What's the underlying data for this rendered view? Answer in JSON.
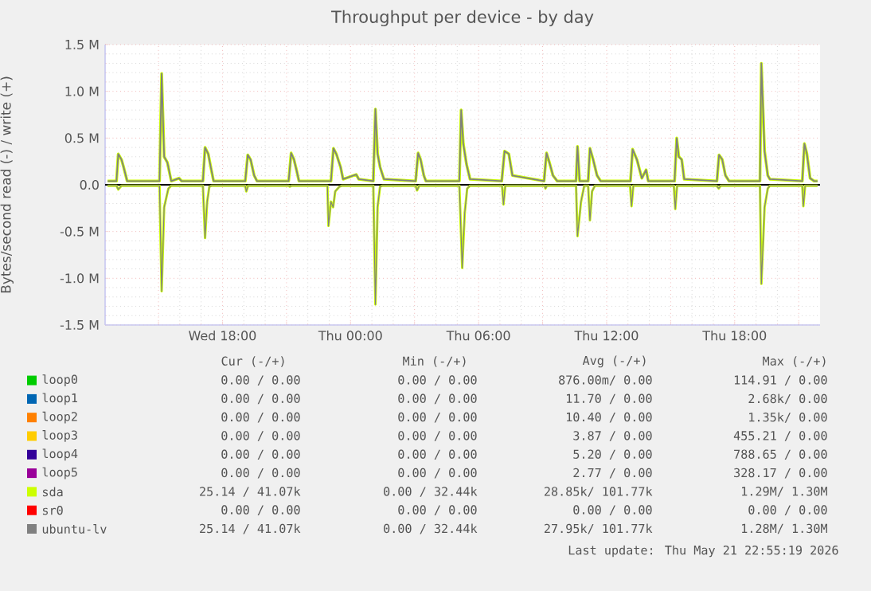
{
  "chart_data": {
    "type": "line",
    "title": "Throughput per device - by day",
    "ylabel": "Bytes/second read (-) / write (+)",
    "xlim": [
      "2026-05-20T12:30",
      "2026-05-21T22:00"
    ],
    "ylim": [
      -1.5,
      1.5
    ],
    "xticks": [
      {
        "value": "2026-05-20T15:00",
        "label": null
      },
      {
        "value": "2026-05-20T18:00",
        "label": "Wed 18:00"
      },
      {
        "value": "2026-05-20T21:00",
        "label": null
      },
      {
        "value": "2026-05-21T00:00",
        "label": "Thu 00:00"
      },
      {
        "value": "2026-05-21T03:00",
        "label": null
      },
      {
        "value": "2026-05-21T06:00",
        "label": "Thu 06:00"
      },
      {
        "value": "2026-05-21T09:00",
        "label": null
      },
      {
        "value": "2026-05-21T12:00",
        "label": "Thu 12:00"
      },
      {
        "value": "2026-05-21T15:00",
        "label": null
      },
      {
        "value": "2026-05-21T18:00",
        "label": "Thu 18:00"
      },
      {
        "value": "2026-05-21T21:00",
        "label": null
      }
    ],
    "yticks": [
      {
        "value": -1.5,
        "label": "-1.5 M"
      },
      {
        "value": -1.0,
        "label": "-1.0 M"
      },
      {
        "value": -0.5,
        "label": "-0.5 M"
      },
      {
        "value": 0,
        "label": "0.0"
      },
      {
        "value": 0.5,
        "label": "0.5 M"
      },
      {
        "value": 1.0,
        "label": "1.0 M"
      },
      {
        "value": 1.5,
        "label": "1.5 M"
      }
    ],
    "grid": true,
    "legend": "bottom",
    "marker": "none",
    "line_style": "solid",
    "ref_lines": [
      {
        "axis": "y",
        "value": 0,
        "color": "#000000"
      }
    ],
    "series": [
      {
        "name": "loop0",
        "color": "#00cc00"
      },
      {
        "name": "loop1",
        "color": "#0066b3"
      },
      {
        "name": "loop2",
        "color": "#ff8000"
      },
      {
        "name": "loop3",
        "color": "#ffcc00"
      },
      {
        "name": "loop4",
        "color": "#330099"
      },
      {
        "name": "loop5",
        "color": "#990099"
      },
      {
        "name": "sda",
        "color": "#ccff00",
        "x": [
          "2026-05-20T12:37",
          "2026-05-20T13:02",
          "2026-05-20T13:07",
          "2026-05-20T13:16",
          "2026-05-20T13:22",
          "2026-05-20T13:32",
          "2026-05-20T15:03",
          "2026-05-20T15:09",
          "2026-05-20T15:16",
          "2026-05-20T15:25",
          "2026-05-20T15:36",
          "2026-05-20T15:58",
          "2026-05-20T16:05",
          "2026-05-20T17:05",
          "2026-05-20T17:11",
          "2026-05-20T17:20",
          "2026-05-20T17:27",
          "2026-05-20T17:35",
          "2026-05-20T19:04",
          "2026-05-20T19:11",
          "2026-05-20T19:19",
          "2026-05-20T19:29",
          "2026-05-20T19:37",
          "2026-05-20T21:06",
          "2026-05-20T21:13",
          "2026-05-20T21:21",
          "2026-05-20T21:28",
          "2026-05-20T21:35",
          "2026-05-20T23:05",
          "2026-05-20T23:12",
          "2026-05-20T23:20",
          "2026-05-20T23:32",
          "2026-05-20T23:39",
          "2026-05-21T00:16",
          "2026-05-21T00:23",
          "2026-05-21T01:04",
          "2026-05-21T01:10",
          "2026-05-21T01:16",
          "2026-05-21T01:23",
          "2026-05-21T01:34",
          "2026-05-21T03:03",
          "2026-05-21T03:10",
          "2026-05-21T03:17",
          "2026-05-21T03:26",
          "2026-05-21T03:32",
          "2026-05-21T05:06",
          "2026-05-21T05:11",
          "2026-05-21T05:17",
          "2026-05-21T05:26",
          "2026-05-21T05:36",
          "2026-05-21T07:05",
          "2026-05-21T07:13",
          "2026-05-21T07:25",
          "2026-05-21T07:35",
          "2026-05-21T09:04",
          "2026-05-21T09:11",
          "2026-05-21T09:19",
          "2026-05-21T09:29",
          "2026-05-21T09:41",
          "2026-05-21T10:34",
          "2026-05-21T10:38",
          "2026-05-21T10:44",
          "2026-05-21T11:08",
          "2026-05-21T11:13",
          "2026-05-21T11:22",
          "2026-05-21T11:33",
          "2026-05-21T11:43",
          "2026-05-21T13:07",
          "2026-05-21T13:13",
          "2026-05-21T13:25",
          "2026-05-21T13:39",
          "2026-05-21T13:51",
          "2026-05-21T13:57",
          "2026-05-21T15:11",
          "2026-05-21T15:17",
          "2026-05-21T15:23",
          "2026-05-21T15:31",
          "2026-05-21T15:38",
          "2026-05-21T17:10",
          "2026-05-21T17:16",
          "2026-05-21T17:25",
          "2026-05-21T17:34",
          "2026-05-21T17:44",
          "2026-05-21T19:11",
          "2026-05-21T19:15",
          "2026-05-21T19:24",
          "2026-05-21T19:33",
          "2026-05-21T19:39",
          "2026-05-21T21:10",
          "2026-05-21T21:16",
          "2026-05-21T21:23",
          "2026-05-21T21:32",
          "2026-05-21T21:43",
          "2026-05-21T21:53"
        ],
        "values": [
          0.04,
          0.04,
          0.33,
          0.27,
          0.19,
          0.04,
          0.04,
          1.19,
          0.3,
          0.24,
          0.04,
          0.07,
          0.04,
          0.04,
          0.4,
          0.33,
          0.19,
          0.04,
          0.04,
          0.32,
          0.27,
          0.1,
          0.04,
          0.04,
          0.34,
          0.27,
          0.16,
          0.04,
          0.04,
          0.39,
          0.33,
          0.19,
          0.06,
          0.11,
          0.06,
          0.04,
          0.81,
          0.33,
          0.19,
          0.06,
          0.04,
          0.34,
          0.27,
          0.1,
          0.04,
          0.04,
          0.8,
          0.44,
          0.22,
          0.06,
          0.04,
          0.36,
          0.33,
          0.1,
          0.04,
          0.34,
          0.24,
          0.1,
          0.04,
          0.04,
          0.41,
          0.04,
          0.04,
          0.39,
          0.27,
          0.1,
          0.04,
          0.04,
          0.38,
          0.27,
          0.07,
          0.16,
          0.04,
          0.04,
          0.5,
          0.3,
          0.27,
          0.06,
          0.04,
          0.32,
          0.27,
          0.1,
          0.04,
          0.04,
          1.3,
          0.36,
          0.1,
          0.06,
          0.04,
          0.44,
          0.33,
          0.07,
          0.04,
          0.04
        ]
      },
      {
        "color": "#ccff00",
        "x": [
          "2026-05-20T12:37",
          "2026-05-20T13:02",
          "2026-05-20T13:07",
          "2026-05-20T13:16",
          "2026-05-20T15:03",
          "2026-05-20T15:09",
          "2026-05-20T15:16",
          "2026-05-20T15:28",
          "2026-05-20T15:36",
          "2026-05-20T17:05",
          "2026-05-20T17:11",
          "2026-05-20T17:17",
          "2026-05-20T17:23",
          "2026-05-20T17:30",
          "2026-05-20T19:04",
          "2026-05-20T19:07",
          "2026-05-20T19:12",
          "2026-05-20T21:06",
          "2026-05-20T21:09",
          "2026-05-20T21:15",
          "2026-05-20T22:55",
          "2026-05-20T22:58",
          "2026-05-20T23:05",
          "2026-05-20T23:11",
          "2026-05-20T23:17",
          "2026-05-20T23:29",
          "2026-05-20T23:36",
          "2026-05-21T01:04",
          "2026-05-21T01:10",
          "2026-05-21T01:16",
          "2026-05-21T01:23",
          "2026-05-21T01:30",
          "2026-05-21T03:03",
          "2026-05-21T03:07",
          "2026-05-21T03:13",
          "2026-05-21T05:06",
          "2026-05-21T05:14",
          "2026-05-21T05:21",
          "2026-05-21T05:28",
          "2026-05-21T05:36",
          "2026-05-21T07:06",
          "2026-05-21T07:10",
          "2026-05-21T07:15",
          "2026-05-21T09:06",
          "2026-05-21T09:08",
          "2026-05-21T09:12",
          "2026-05-21T10:34",
          "2026-05-21T10:38",
          "2026-05-21T10:48",
          "2026-05-21T10:57",
          "2026-05-21T11:08",
          "2026-05-21T11:13",
          "2026-05-21T11:19",
          "2026-05-21T11:27",
          "2026-05-21T13:06",
          "2026-05-21T13:10",
          "2026-05-21T13:15",
          "2026-05-21T15:09",
          "2026-05-21T15:13",
          "2026-05-21T15:18",
          "2026-05-21T17:09",
          "2026-05-21T17:15",
          "2026-05-21T17:21",
          "2026-05-21T19:11",
          "2026-05-21T19:15",
          "2026-05-21T19:24",
          "2026-05-21T19:33",
          "2026-05-21T19:39",
          "2026-05-21T21:10",
          "2026-05-21T21:13",
          "2026-05-21T21:18",
          "2026-05-21T21:53"
        ],
        "values": [
          -0.01,
          -0.01,
          -0.05,
          -0.01,
          -0.01,
          -1.14,
          -0.24,
          -0.04,
          -0.01,
          -0.01,
          -0.57,
          -0.18,
          -0.02,
          -0.01,
          -0.01,
          -0.07,
          -0.01,
          -0.01,
          -0.02,
          -0.01,
          -0.01,
          -0.44,
          -0.18,
          -0.24,
          -0.07,
          -0.02,
          -0.01,
          -0.01,
          -1.28,
          -0.24,
          -0.02,
          -0.01,
          -0.01,
          -0.06,
          -0.01,
          -0.01,
          -0.89,
          -0.3,
          -0.04,
          -0.01,
          -0.01,
          -0.21,
          -0.01,
          -0.01,
          -0.04,
          -0.01,
          -0.01,
          -0.55,
          -0.18,
          -0.01,
          -0.01,
          -0.38,
          -0.07,
          -0.01,
          -0.01,
          -0.23,
          -0.01,
          -0.01,
          -0.26,
          -0.01,
          -0.01,
          -0.04,
          -0.01,
          -0.01,
          -1.06,
          -0.24,
          -0.04,
          -0.01,
          -0.01,
          -0.23,
          -0.01,
          -0.01
        ]
      },
      {
        "name": "sr0",
        "color": "#ff0000"
      },
      {
        "name": "ubuntu-lv",
        "color": "#808080",
        "x": [
          "2026-05-20T12:37",
          "2026-05-20T13:02",
          "2026-05-20T13:07",
          "2026-05-20T13:16",
          "2026-05-20T13:22",
          "2026-05-20T13:32",
          "2026-05-20T15:03",
          "2026-05-20T15:09",
          "2026-05-20T15:16",
          "2026-05-20T15:25",
          "2026-05-20T15:36",
          "2026-05-20T15:58",
          "2026-05-20T16:05",
          "2026-05-20T17:05",
          "2026-05-20T17:11",
          "2026-05-20T17:20",
          "2026-05-20T17:27",
          "2026-05-20T17:35",
          "2026-05-20T19:04",
          "2026-05-20T19:11",
          "2026-05-20T19:19",
          "2026-05-20T19:29",
          "2026-05-20T19:37",
          "2026-05-20T21:06",
          "2026-05-20T21:13",
          "2026-05-20T21:21",
          "2026-05-20T21:28",
          "2026-05-20T21:35",
          "2026-05-20T23:05",
          "2026-05-20T23:12",
          "2026-05-20T23:20",
          "2026-05-20T23:32",
          "2026-05-20T23:39",
          "2026-05-21T00:16",
          "2026-05-21T00:23",
          "2026-05-21T01:04",
          "2026-05-21T01:10",
          "2026-05-21T01:16",
          "2026-05-21T01:23",
          "2026-05-21T01:34",
          "2026-05-21T03:03",
          "2026-05-21T03:10",
          "2026-05-21T03:17",
          "2026-05-21T03:26",
          "2026-05-21T03:32",
          "2026-05-21T05:06",
          "2026-05-21T05:11",
          "2026-05-21T05:17",
          "2026-05-21T05:26",
          "2026-05-21T05:36",
          "2026-05-21T07:05",
          "2026-05-21T07:13",
          "2026-05-21T07:25",
          "2026-05-21T07:35",
          "2026-05-21T09:04",
          "2026-05-21T09:11",
          "2026-05-21T09:19",
          "2026-05-21T09:29",
          "2026-05-21T09:41",
          "2026-05-21T10:34",
          "2026-05-21T10:38",
          "2026-05-21T10:44",
          "2026-05-21T11:08",
          "2026-05-21T11:13",
          "2026-05-21T11:22",
          "2026-05-21T11:33",
          "2026-05-21T11:43",
          "2026-05-21T13:07",
          "2026-05-21T13:13",
          "2026-05-21T13:25",
          "2026-05-21T13:39",
          "2026-05-21T13:51",
          "2026-05-21T13:57",
          "2026-05-21T15:11",
          "2026-05-21T15:17",
          "2026-05-21T15:23",
          "2026-05-21T15:31",
          "2026-05-21T15:38",
          "2026-05-21T17:10",
          "2026-05-21T17:16",
          "2026-05-21T17:25",
          "2026-05-21T17:34",
          "2026-05-21T17:44",
          "2026-05-21T19:11",
          "2026-05-21T19:15",
          "2026-05-21T19:24",
          "2026-05-21T19:33",
          "2026-05-21T19:39",
          "2026-05-21T21:10",
          "2026-05-21T21:16",
          "2026-05-21T21:23",
          "2026-05-21T21:32",
          "2026-05-21T21:43",
          "2026-05-21T21:53"
        ],
        "values": [
          0.04,
          0.04,
          0.33,
          0.27,
          0.19,
          0.04,
          0.04,
          1.19,
          0.3,
          0.24,
          0.04,
          0.07,
          0.04,
          0.04,
          0.4,
          0.33,
          0.19,
          0.04,
          0.04,
          0.32,
          0.27,
          0.1,
          0.04,
          0.04,
          0.34,
          0.27,
          0.16,
          0.04,
          0.04,
          0.39,
          0.33,
          0.19,
          0.06,
          0.11,
          0.06,
          0.04,
          0.81,
          0.33,
          0.19,
          0.06,
          0.04,
          0.34,
          0.27,
          0.1,
          0.04,
          0.04,
          0.8,
          0.44,
          0.22,
          0.06,
          0.04,
          0.36,
          0.33,
          0.1,
          0.04,
          0.34,
          0.24,
          0.1,
          0.04,
          0.04,
          0.41,
          0.04,
          0.04,
          0.39,
          0.27,
          0.1,
          0.04,
          0.04,
          0.38,
          0.27,
          0.07,
          0.16,
          0.04,
          0.04,
          0.5,
          0.3,
          0.27,
          0.06,
          0.04,
          0.32,
          0.27,
          0.1,
          0.04,
          0.04,
          1.3,
          0.36,
          0.1,
          0.06,
          0.04,
          0.44,
          0.33,
          0.07,
          0.04,
          0.04
        ]
      },
      {
        "color": "#808080",
        "x": [
          "2026-05-20T12:37",
          "2026-05-20T13:02",
          "2026-05-20T13:07",
          "2026-05-20T13:16",
          "2026-05-20T15:03",
          "2026-05-20T15:09",
          "2026-05-20T15:16",
          "2026-05-20T15:28",
          "2026-05-20T15:36",
          "2026-05-20T17:05",
          "2026-05-20T17:11",
          "2026-05-20T17:17",
          "2026-05-20T17:23",
          "2026-05-20T17:30",
          "2026-05-20T19:04",
          "2026-05-20T19:07",
          "2026-05-20T19:12",
          "2026-05-20T21:06",
          "2026-05-20T21:09",
          "2026-05-20T21:15",
          "2026-05-20T22:55",
          "2026-05-20T22:58",
          "2026-05-20T23:05",
          "2026-05-20T23:11",
          "2026-05-20T23:17",
          "2026-05-20T23:29",
          "2026-05-20T23:36",
          "2026-05-21T01:04",
          "2026-05-21T01:10",
          "2026-05-21T01:16",
          "2026-05-21T01:23",
          "2026-05-21T01:30",
          "2026-05-21T03:03",
          "2026-05-21T03:07",
          "2026-05-21T03:13",
          "2026-05-21T05:06",
          "2026-05-21T05:14",
          "2026-05-21T05:21",
          "2026-05-21T05:28",
          "2026-05-21T05:36",
          "2026-05-21T07:06",
          "2026-05-21T07:10",
          "2026-05-21T07:15",
          "2026-05-21T09:06",
          "2026-05-21T09:08",
          "2026-05-21T09:12",
          "2026-05-21T10:34",
          "2026-05-21T10:38",
          "2026-05-21T10:48",
          "2026-05-21T10:57",
          "2026-05-21T11:08",
          "2026-05-21T11:13",
          "2026-05-21T11:19",
          "2026-05-21T11:27",
          "2026-05-21T13:06",
          "2026-05-21T13:10",
          "2026-05-21T13:15",
          "2026-05-21T15:09",
          "2026-05-21T15:13",
          "2026-05-21T15:18",
          "2026-05-21T17:09",
          "2026-05-21T17:15",
          "2026-05-21T17:21",
          "2026-05-21T19:11",
          "2026-05-21T19:15",
          "2026-05-21T19:24",
          "2026-05-21T19:33",
          "2026-05-21T19:39",
          "2026-05-21T21:10",
          "2026-05-21T21:13",
          "2026-05-21T21:18",
          "2026-05-21T21:53"
        ],
        "values": [
          -0.01,
          -0.01,
          -0.05,
          -0.01,
          -0.01,
          -1.14,
          -0.24,
          -0.04,
          -0.01,
          -0.01,
          -0.57,
          -0.18,
          -0.02,
          -0.01,
          -0.01,
          -0.07,
          -0.01,
          -0.01,
          -0.02,
          -0.01,
          -0.01,
          -0.44,
          -0.18,
          -0.24,
          -0.07,
          -0.02,
          -0.01,
          -0.01,
          -1.28,
          -0.24,
          -0.02,
          -0.01,
          -0.01,
          -0.06,
          -0.01,
          -0.01,
          -0.89,
          -0.3,
          -0.04,
          -0.01,
          -0.01,
          -0.21,
          -0.01,
          -0.01,
          -0.04,
          -0.01,
          -0.01,
          -0.55,
          -0.18,
          -0.01,
          -0.01,
          -0.38,
          -0.07,
          -0.01,
          -0.01,
          -0.23,
          -0.01,
          -0.01,
          -0.26,
          -0.01,
          -0.01,
          -0.04,
          -0.01,
          -0.01,
          -1.06,
          -0.24,
          -0.04,
          -0.01,
          -0.01,
          -0.23,
          -0.01,
          -0.01
        ]
      }
    ],
    "annotations": [
      "Cur (-/+)",
      "Min (-/+)",
      "Avg (-/+)",
      "Max (-/+)",
      "0.00 / 0.00",
      "0.00 / 0.00",
      "876.00m/ 0.00",
      "114.91 / 0.00",
      "0.00 / 0.00",
      "0.00 / 0.00",
      "11.70 / 0.00",
      "2.68k/ 0.00",
      "0.00 / 0.00",
      "0.00 / 0.00",
      "10.40 / 0.00",
      "1.35k/ 0.00",
      "0.00 / 0.00",
      "0.00 / 0.00",
      "3.87 / 0.00",
      "455.21 / 0.00",
      "0.00 / 0.00",
      "0.00 / 0.00",
      "5.20 / 0.00",
      "788.65 / 0.00",
      "0.00 / 0.00",
      "0.00 / 0.00",
      "2.77 / 0.00",
      "328.17 / 0.00",
      "25.14 / 41.07k",
      "0.00 / 32.44k",
      "28.85k/ 101.77k",
      "1.29M/ 1.30M",
      "0.00 / 0.00",
      "0.00 / 0.00",
      "0.00 / 0.00",
      "0.00 / 0.00",
      "25.14 / 41.07k",
      "0.00 / 32.44k",
      "27.95k/ 101.77k",
      "1.28M/ 1.30M",
      "Last update: Thu May 21 22:55:19 2026"
    ]
  }
}
